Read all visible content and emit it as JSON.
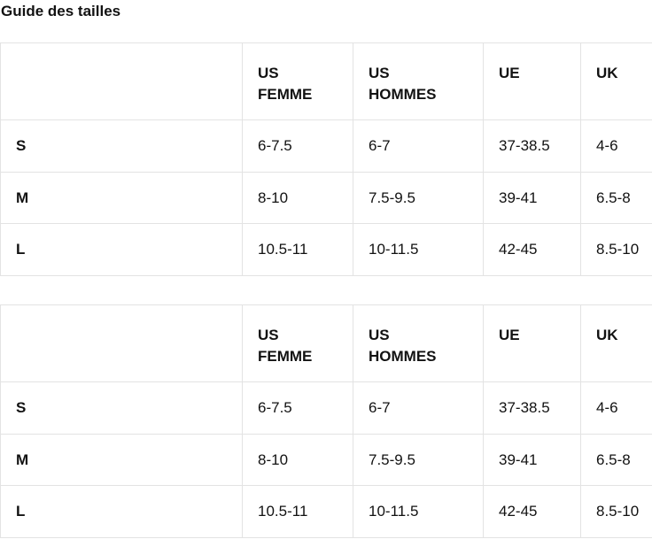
{
  "page": {
    "title": "Guide des tailles"
  },
  "tables": [
    {
      "columns": [
        "",
        "US FEMME",
        "US HOMMES",
        "UE",
        "UK"
      ],
      "rows": [
        {
          "label": "S",
          "values": [
            "6-7.5",
            "6-7",
            "37-38.5",
            "4-6"
          ]
        },
        {
          "label": "M",
          "values": [
            "8-10",
            "7.5-9.5",
            "39-41",
            "6.5-8"
          ]
        },
        {
          "label": "L",
          "values": [
            "10.5-11",
            "10-11.5",
            "42-45",
            "8.5-10"
          ]
        }
      ]
    },
    {
      "columns": [
        "",
        "US FEMME",
        "US HOMMES",
        "UE",
        "UK"
      ],
      "rows": [
        {
          "label": "S",
          "values": [
            "6-7.5",
            "6-7",
            "37-38.5",
            "4-6"
          ]
        },
        {
          "label": "M",
          "values": [
            "8-10",
            "7.5-9.5",
            "39-41",
            "6.5-8"
          ]
        },
        {
          "label": "L",
          "values": [
            "10.5-11",
            "10-11.5",
            "42-45",
            "8.5-10"
          ]
        }
      ]
    }
  ],
  "colors": {
    "text": "#121212",
    "border": "#e3e3e3",
    "background": "#ffffff"
  }
}
